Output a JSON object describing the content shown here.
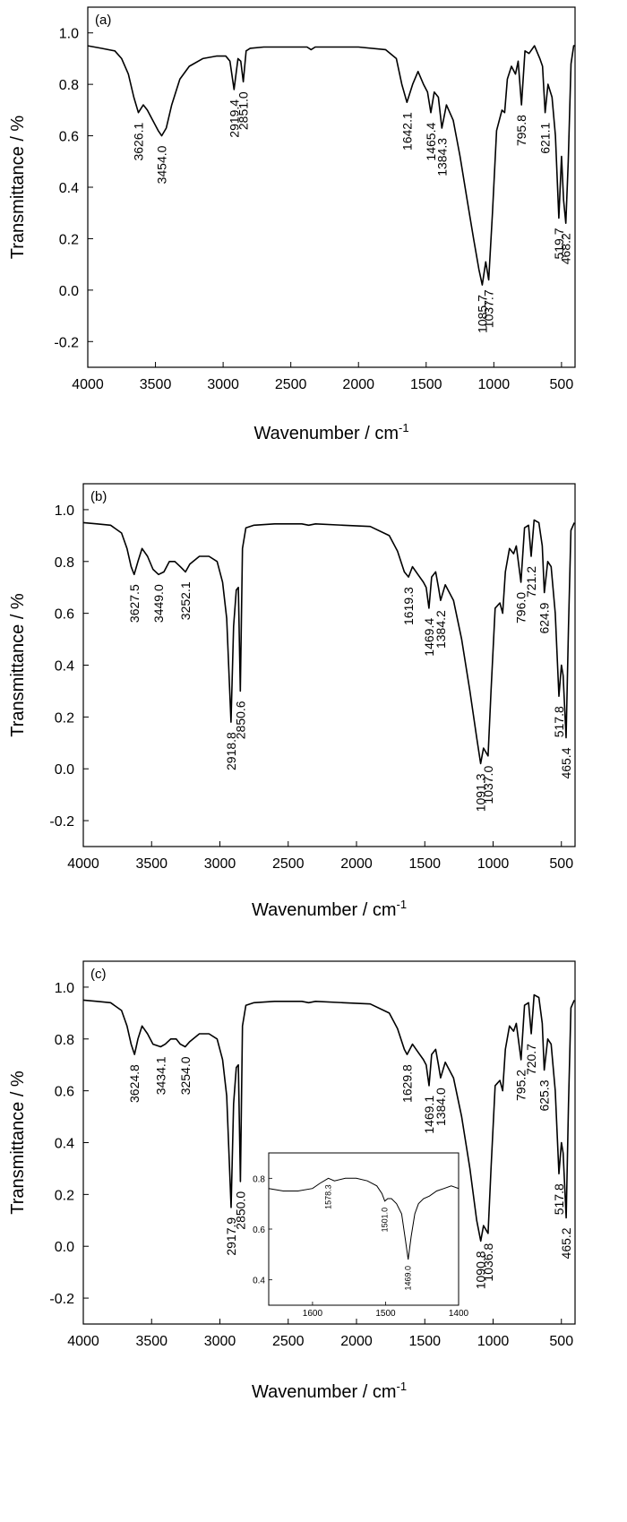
{
  "chart_data": [
    {
      "type": "line",
      "panel_label": "(a)",
      "xlabel": "Wavenumber / cm",
      "xlabel_sup": "-1",
      "ylabel": "Transmittance / %",
      "xlim": [
        4000,
        400
      ],
      "ylim": [
        -0.3,
        1.1
      ],
      "x_ticks": [
        4000,
        3500,
        3000,
        2500,
        2000,
        1500,
        1000,
        500
      ],
      "y_ticks": [
        -0.2,
        0.0,
        0.2,
        0.4,
        0.6,
        0.8,
        1.0
      ],
      "y_tick_labels": [
        "-0.2",
        "0.0",
        "0.2",
        "0.4",
        "0.6",
        "0.8",
        "1.0"
      ],
      "grid": false,
      "series": [
        {
          "x": [
            4000,
            3900,
            3800,
            3750,
            3700,
            3660,
            3626.1,
            3590,
            3560,
            3520,
            3480,
            3454.0,
            3420,
            3380,
            3320,
            3250,
            3150,
            3050,
            2980,
            2950,
            2919.4,
            2890,
            2870,
            2851.0,
            2830,
            2800,
            2700,
            2500,
            2380,
            2350,
            2320,
            2200,
            2000,
            1800,
            1720,
            1680,
            1642.1,
            1600,
            1560,
            1520,
            1490,
            1465.4,
            1440,
            1410,
            1384.3,
            1350,
            1300,
            1250,
            1200,
            1150,
            1110,
            1085.7,
            1060,
            1037.7,
            1010,
            980,
            940,
            920,
            900,
            870,
            840,
            820,
            795.8,
            770,
            740,
            700,
            660,
            640,
            621.1,
            600,
            570,
            545,
            519.7,
            500,
            485,
            468.2,
            450,
            430,
            410,
            400
          ],
          "y": [
            0.95,
            0.94,
            0.93,
            0.9,
            0.84,
            0.75,
            0.69,
            0.72,
            0.7,
            0.66,
            0.62,
            0.6,
            0.63,
            0.72,
            0.82,
            0.87,
            0.9,
            0.91,
            0.91,
            0.89,
            0.78,
            0.9,
            0.89,
            0.81,
            0.93,
            0.94,
            0.945,
            0.945,
            0.945,
            0.935,
            0.945,
            0.945,
            0.945,
            0.935,
            0.9,
            0.8,
            0.73,
            0.8,
            0.85,
            0.8,
            0.77,
            0.69,
            0.77,
            0.75,
            0.63,
            0.72,
            0.66,
            0.52,
            0.36,
            0.2,
            0.08,
            0.02,
            0.11,
            0.04,
            0.3,
            0.62,
            0.7,
            0.69,
            0.82,
            0.87,
            0.84,
            0.89,
            0.72,
            0.93,
            0.92,
            0.95,
            0.9,
            0.87,
            0.69,
            0.8,
            0.75,
            0.6,
            0.28,
            0.52,
            0.35,
            0.26,
            0.5,
            0.88,
            0.95,
            0.95
          ]
        }
      ],
      "annotations": [
        {
          "x": 3626.1,
          "label": "3626.1"
        },
        {
          "x": 3454.0,
          "label": "3454.0"
        },
        {
          "x": 2919.4,
          "label": "2919.4"
        },
        {
          "x": 2851.0,
          "label": "2851.0"
        },
        {
          "x": 1642.1,
          "label": "1642.1"
        },
        {
          "x": 1465.4,
          "label": "1465.4"
        },
        {
          "x": 1384.3,
          "label": "1384.3"
        },
        {
          "x": 1085.7,
          "label": "1085.7"
        },
        {
          "x": 1037.7,
          "label": "1037.7"
        },
        {
          "x": 795.8,
          "label": "795.8"
        },
        {
          "x": 621.1,
          "label": "621.1"
        },
        {
          "x": 519.7,
          "label": "519.7"
        },
        {
          "x": 468.2,
          "label": "468.2"
        }
      ]
    },
    {
      "type": "line",
      "panel_label": "(b)",
      "xlabel": "Wavenumber / cm",
      "xlabel_sup": "-1",
      "ylabel": "Transmittance / %",
      "xlim": [
        4000,
        400
      ],
      "ylim": [
        -0.3,
        1.1
      ],
      "x_ticks": [
        4000,
        3500,
        3000,
        2500,
        2000,
        1500,
        1000,
        500
      ],
      "y_ticks": [
        -0.2,
        0.0,
        0.2,
        0.4,
        0.6,
        0.8,
        1.0
      ],
      "y_tick_labels": [
        "-0.2",
        "0.0",
        "0.2",
        "0.4",
        "0.6",
        "0.8",
        "1.0"
      ],
      "grid": false,
      "series": [
        {
          "x": [
            4000,
            3900,
            3800,
            3720,
            3680,
            3650,
            3627.5,
            3600,
            3570,
            3530,
            3490,
            3449.0,
            3410,
            3370,
            3330,
            3290,
            3252.1,
            3220,
            3150,
            3080,
            3020,
            2980,
            2950,
            2918.8,
            2900,
            2880,
            2865,
            2850.6,
            2835,
            2810,
            2750,
            2600,
            2400,
            2350,
            2300,
            2100,
            1900,
            1760,
            1700,
            1650,
            1619.3,
            1590,
            1550,
            1510,
            1490,
            1469.4,
            1450,
            1420,
            1400,
            1384.2,
            1350,
            1290,
            1230,
            1170,
            1120,
            1091.3,
            1070,
            1037.0,
            1015,
            985,
            950,
            930,
            910,
            880,
            850,
            830,
            796.0,
            770,
            740,
            721.2,
            700,
            665,
            640,
            624.9,
            600,
            575,
            545,
            517.8,
            500,
            487,
            465.4,
            448,
            430,
            405
          ],
          "y": [
            0.95,
            0.945,
            0.94,
            0.91,
            0.85,
            0.78,
            0.75,
            0.8,
            0.85,
            0.82,
            0.77,
            0.75,
            0.76,
            0.8,
            0.8,
            0.78,
            0.76,
            0.79,
            0.82,
            0.82,
            0.8,
            0.72,
            0.58,
            0.18,
            0.55,
            0.69,
            0.7,
            0.3,
            0.85,
            0.93,
            0.94,
            0.945,
            0.945,
            0.94,
            0.945,
            0.94,
            0.935,
            0.9,
            0.84,
            0.76,
            0.74,
            0.78,
            0.75,
            0.72,
            0.7,
            0.62,
            0.74,
            0.76,
            0.7,
            0.65,
            0.71,
            0.65,
            0.5,
            0.3,
            0.12,
            0.02,
            0.08,
            0.05,
            0.3,
            0.62,
            0.64,
            0.6,
            0.76,
            0.85,
            0.83,
            0.86,
            0.72,
            0.93,
            0.94,
            0.82,
            0.96,
            0.95,
            0.86,
            0.68,
            0.8,
            0.78,
            0.6,
            0.28,
            0.4,
            0.36,
            0.12,
            0.55,
            0.92,
            0.95
          ]
        }
      ],
      "annotations": [
        {
          "x": 3627.5,
          "label": "3627.5"
        },
        {
          "x": 3449.0,
          "label": "3449.0"
        },
        {
          "x": 3252.1,
          "label": "3252.1"
        },
        {
          "x": 2918.8,
          "label": "2918.8"
        },
        {
          "x": 2850.6,
          "label": "2850.6"
        },
        {
          "x": 1619.3,
          "label": "1619.3"
        },
        {
          "x": 1469.4,
          "label": "1469.4"
        },
        {
          "x": 1384.2,
          "label": "1384.2"
        },
        {
          "x": 1091.3,
          "label": "1091.3"
        },
        {
          "x": 1037.0,
          "label": "1037.0"
        },
        {
          "x": 796.0,
          "label": "796.0"
        },
        {
          "x": 721.2,
          "label": "721.2"
        },
        {
          "x": 624.9,
          "label": "624.9"
        },
        {
          "x": 517.8,
          "label": "517.8"
        },
        {
          "x": 465.4,
          "label": "465.4"
        }
      ]
    },
    {
      "type": "line",
      "panel_label": "(c)",
      "xlabel": "Wavenumber / cm",
      "xlabel_sup": "-1",
      "ylabel": "Transmittance / %",
      "xlim": [
        4000,
        400
      ],
      "ylim": [
        -0.3,
        1.1
      ],
      "x_ticks": [
        4000,
        3500,
        3000,
        2500,
        2000,
        1500,
        1000,
        500
      ],
      "y_ticks": [
        -0.2,
        0.0,
        0.2,
        0.4,
        0.6,
        0.8,
        1.0
      ],
      "y_tick_labels": [
        "-0.2",
        "0.0",
        "0.2",
        "0.4",
        "0.6",
        "0.8",
        "1.0"
      ],
      "grid": false,
      "series": [
        {
          "x": [
            4000,
            3900,
            3800,
            3720,
            3680,
            3650,
            3624.8,
            3600,
            3570,
            3530,
            3490,
            3434.1,
            3400,
            3360,
            3320,
            3290,
            3254.0,
            3220,
            3150,
            3080,
            3020,
            2980,
            2950,
            2917.9,
            2900,
            2880,
            2865,
            2850.0,
            2835,
            2810,
            2750,
            2600,
            2400,
            2350,
            2300,
            2100,
            1900,
            1760,
            1700,
            1650,
            1629.8,
            1590,
            1550,
            1510,
            1490,
            1469.1,
            1450,
            1420,
            1400,
            1384.0,
            1350,
            1290,
            1230,
            1170,
            1120,
            1090.8,
            1070,
            1036.8,
            1015,
            985,
            950,
            930,
            910,
            880,
            850,
            830,
            795.2,
            770,
            740,
            720.7,
            700,
            665,
            640,
            625.3,
            600,
            575,
            545,
            517.8,
            500,
            487,
            465.2,
            448,
            430,
            405
          ],
          "y": [
            0.95,
            0.945,
            0.94,
            0.91,
            0.85,
            0.78,
            0.74,
            0.8,
            0.85,
            0.82,
            0.78,
            0.77,
            0.78,
            0.8,
            0.8,
            0.78,
            0.77,
            0.79,
            0.82,
            0.82,
            0.8,
            0.72,
            0.58,
            0.15,
            0.55,
            0.69,
            0.7,
            0.25,
            0.85,
            0.93,
            0.94,
            0.945,
            0.945,
            0.94,
            0.945,
            0.94,
            0.935,
            0.9,
            0.84,
            0.76,
            0.74,
            0.78,
            0.75,
            0.72,
            0.7,
            0.62,
            0.74,
            0.76,
            0.7,
            0.65,
            0.71,
            0.65,
            0.5,
            0.3,
            0.1,
            0.02,
            0.08,
            0.05,
            0.3,
            0.62,
            0.64,
            0.6,
            0.76,
            0.85,
            0.83,
            0.86,
            0.72,
            0.93,
            0.94,
            0.82,
            0.97,
            0.96,
            0.86,
            0.68,
            0.8,
            0.78,
            0.6,
            0.28,
            0.4,
            0.36,
            0.11,
            0.55,
            0.92,
            0.95
          ]
        }
      ],
      "annotations": [
        {
          "x": 3624.8,
          "label": "3624.8"
        },
        {
          "x": 3434.1,
          "label": "3434.1"
        },
        {
          "x": 3254.0,
          "label": "3254.0"
        },
        {
          "x": 2917.9,
          "label": "2917.9"
        },
        {
          "x": 2850.0,
          "label": "2850.0"
        },
        {
          "x": 1629.8,
          "label": "1629.8"
        },
        {
          "x": 1469.1,
          "label": "1469.1"
        },
        {
          "x": 1384.0,
          "label": "1384.0"
        },
        {
          "x": 1090.8,
          "label": "1090.8"
        },
        {
          "x": 1036.8,
          "label": "1036.8"
        },
        {
          "x": 795.2,
          "label": "795.2"
        },
        {
          "x": 720.7,
          "label": "720.7"
        },
        {
          "x": 625.3,
          "label": "625.3"
        },
        {
          "x": 517.8,
          "label": "517.8"
        },
        {
          "x": 465.2,
          "label": "465.2"
        }
      ],
      "inset": {
        "type": "line",
        "xlim": [
          1660,
          1400
        ],
        "ylim": [
          0.3,
          0.9
        ],
        "x_ticks": [
          1600,
          1500,
          1400
        ],
        "y_ticks": [
          0.4,
          0.6,
          0.8
        ],
        "y_tick_labels": [
          "0.4",
          "0.6",
          "0.8"
        ],
        "series": [
          {
            "x": [
              1660,
              1640,
              1620,
              1600,
              1590,
              1578.3,
              1570,
              1555,
              1540,
              1525,
              1512,
              1505,
              1501.0,
              1497,
              1492,
              1485,
              1478,
              1473,
              1469.0,
              1465,
              1460,
              1455,
              1448,
              1440,
              1430,
              1420,
              1410,
              1400
            ],
            "y": [
              0.76,
              0.75,
              0.75,
              0.76,
              0.78,
              0.8,
              0.79,
              0.8,
              0.8,
              0.79,
              0.77,
              0.74,
              0.71,
              0.72,
              0.72,
              0.7,
              0.66,
              0.56,
              0.48,
              0.57,
              0.66,
              0.7,
              0.72,
              0.73,
              0.75,
              0.76,
              0.77,
              0.76
            ]
          }
        ],
        "annotations": [
          {
            "x": 1578.3,
            "label": "1578.3"
          },
          {
            "x": 1501.0,
            "label": "1501.0"
          },
          {
            "x": 1469.0,
            "label": "1469.0"
          }
        ]
      }
    }
  ]
}
